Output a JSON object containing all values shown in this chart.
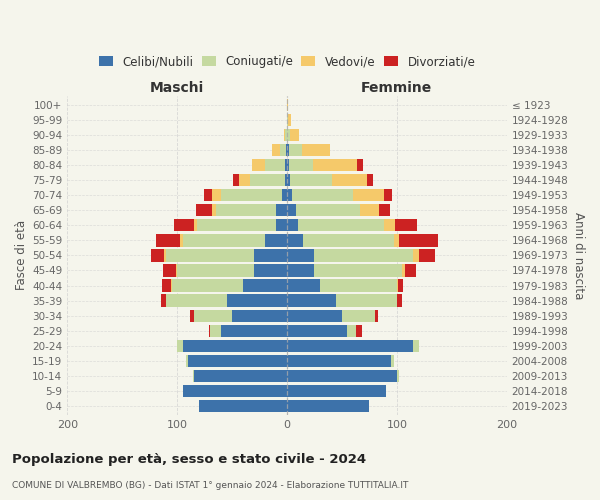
{
  "age_groups": [
    "100+",
    "95-99",
    "90-94",
    "85-89",
    "80-84",
    "75-79",
    "70-74",
    "65-69",
    "60-64",
    "55-59",
    "50-54",
    "45-49",
    "40-44",
    "35-39",
    "30-34",
    "25-29",
    "20-24",
    "15-19",
    "10-14",
    "5-9",
    "0-4"
  ],
  "birth_years": [
    "≤ 1923",
    "1924-1928",
    "1929-1933",
    "1934-1938",
    "1939-1943",
    "1944-1948",
    "1949-1953",
    "1954-1958",
    "1959-1963",
    "1964-1968",
    "1969-1973",
    "1974-1978",
    "1979-1983",
    "1984-1988",
    "1989-1993",
    "1994-1998",
    "1999-2003",
    "2004-2008",
    "2009-2013",
    "2014-2018",
    "2019-2023"
  ],
  "colors": {
    "celibi": "#3d72aa",
    "coniugati": "#c5d9a0",
    "vedovi": "#f5c96a",
    "divorziati": "#cc2222"
  },
  "males": {
    "celibi": [
      0,
      0,
      0,
      1,
      2,
      2,
      5,
      10,
      10,
      20,
      30,
      30,
      40,
      55,
      50,
      60,
      95,
      90,
      85,
      95,
      80
    ],
    "coniugati": [
      0,
      0,
      2,
      5,
      18,
      32,
      55,
      55,
      72,
      75,
      80,
      70,
      65,
      55,
      35,
      10,
      5,
      2,
      1,
      0,
      0
    ],
    "vedovi": [
      0,
      0,
      1,
      8,
      12,
      10,
      8,
      3,
      3,
      2,
      2,
      1,
      1,
      0,
      0,
      0,
      0,
      0,
      0,
      0,
      0
    ],
    "divorziati": [
      0,
      0,
      0,
      0,
      0,
      5,
      8,
      15,
      18,
      22,
      12,
      12,
      8,
      5,
      3,
      1,
      0,
      0,
      0,
      0,
      0
    ]
  },
  "females": {
    "celibi": [
      0,
      0,
      0,
      2,
      2,
      3,
      5,
      8,
      10,
      15,
      25,
      25,
      30,
      45,
      50,
      55,
      115,
      95,
      100,
      90,
      75
    ],
    "coniugati": [
      0,
      1,
      3,
      12,
      22,
      38,
      55,
      58,
      78,
      82,
      90,
      80,
      70,
      55,
      30,
      8,
      5,
      2,
      2,
      0,
      0
    ],
    "vedovi": [
      1,
      3,
      8,
      25,
      40,
      32,
      28,
      18,
      10,
      5,
      5,
      2,
      1,
      0,
      0,
      0,
      0,
      0,
      0,
      0,
      0
    ],
    "divorziati": [
      0,
      0,
      0,
      0,
      5,
      5,
      8,
      10,
      20,
      35,
      15,
      10,
      5,
      5,
      3,
      5,
      0,
      0,
      0,
      0,
      0
    ]
  },
  "title": "Popolazione per età, sesso e stato civile - 2024",
  "subtitle": "COMUNE DI VALBREMBO (BG) - Dati ISTAT 1° gennaio 2024 - Elaborazione TUTTITALIA.IT",
  "label_maschi": "Maschi",
  "label_femmine": "Femmine",
  "ylabel_left": "Fasce di età",
  "ylabel_right": "Anni di nascita",
  "xlim": 200,
  "background_color": "#f5f5ec",
  "grid_color": "#cccccc",
  "legend": [
    "Celibi/Nubili",
    "Coniugati/e",
    "Vedovi/e",
    "Divorziati/e"
  ]
}
